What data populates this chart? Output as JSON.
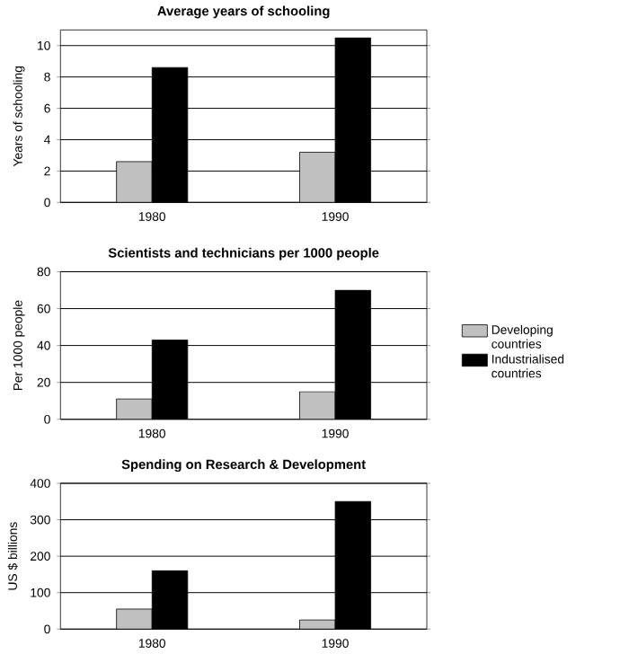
{
  "chart_data": [
    {
      "type": "bar",
      "title": "Average years of schooling",
      "ylabel": "Years of schooling",
      "categories": [
        "1980",
        "1990"
      ],
      "series": [
        {
          "color": "#c0c0c0",
          "values": [
            2.6,
            3.2
          ]
        },
        {
          "color": "#000000",
          "values": [
            8.6,
            10.5
          ]
        }
      ],
      "ylim": [
        0,
        11
      ],
      "yticks": [
        0,
        2,
        4,
        6,
        8,
        10
      ],
      "grid": "y"
    },
    {
      "type": "bar",
      "title": "Scientists and technicians per 1000 people",
      "ylabel": "Per 1000 people",
      "categories": [
        "1980",
        "1990"
      ],
      "series": [
        {
          "name": "Developing countries",
          "color": "#c0c0c0",
          "values": [
            11,
            15
          ]
        },
        {
          "name": "Industrialised countries",
          "color": "#000000",
          "values": [
            43,
            70
          ]
        }
      ],
      "ylim": [
        0,
        80
      ],
      "yticks": [
        0,
        20,
        40,
        60,
        80
      ],
      "grid": "y",
      "legend": "right"
    },
    {
      "type": "bar",
      "title": "Spending on Research & Development",
      "ylabel": "US $ billions",
      "categories": [
        "1980",
        "1990"
      ],
      "series": [
        {
          "color": "#c0c0c0",
          "values": [
            55,
            25
          ]
        },
        {
          "color": "#000000",
          "values": [
            160,
            350
          ]
        }
      ],
      "ylim": [
        0,
        400
      ],
      "yticks": [
        0,
        100,
        200,
        300,
        400
      ],
      "grid": "y"
    }
  ]
}
